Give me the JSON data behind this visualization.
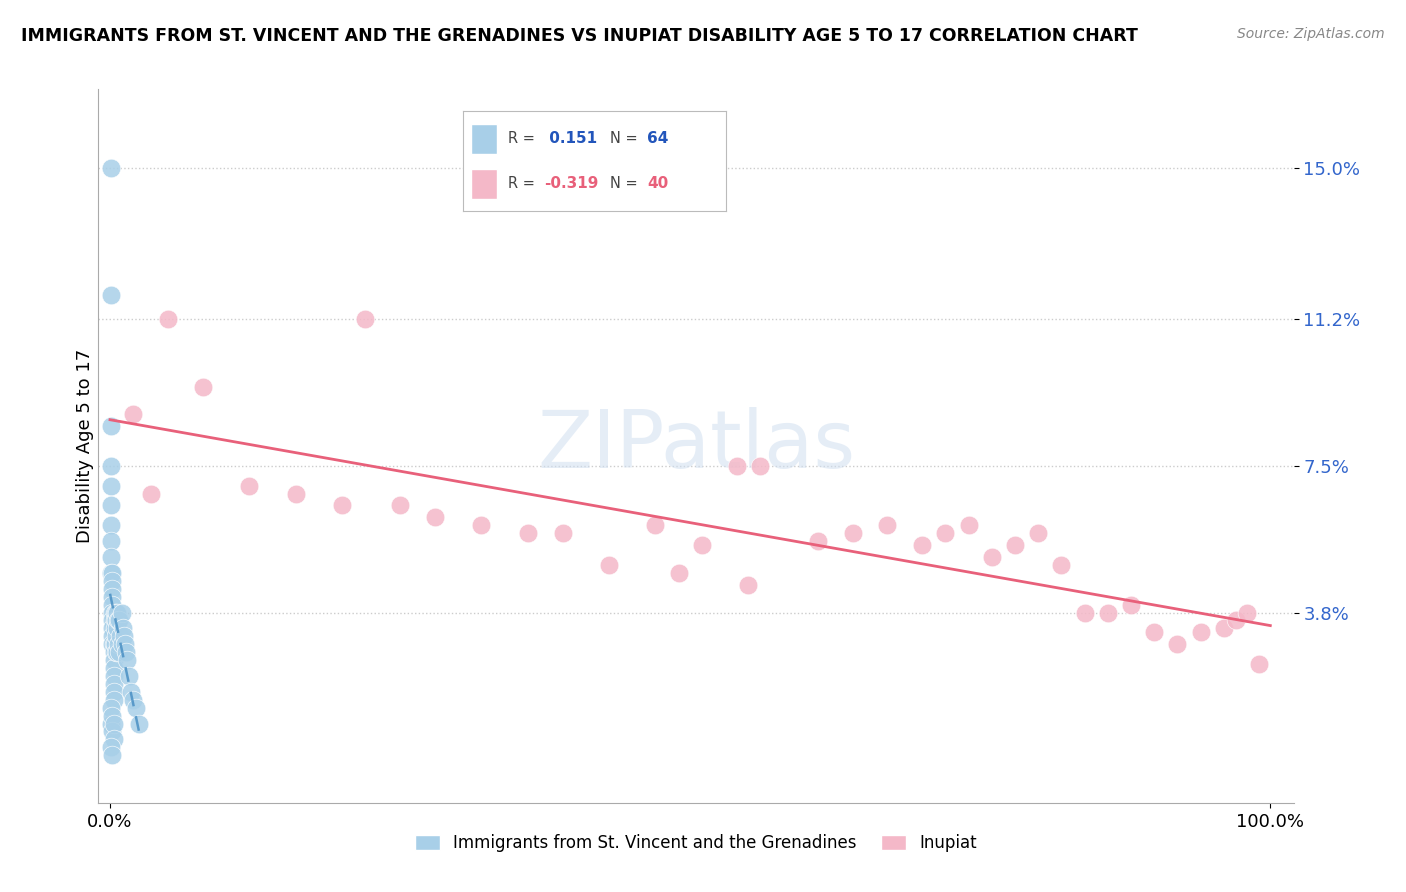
{
  "title": "IMMIGRANTS FROM ST. VINCENT AND THE GRENADINES VS INUPIAT DISABILITY AGE 5 TO 17 CORRELATION CHART",
  "source": "Source: ZipAtlas.com",
  "ylabel": "Disability Age 5 to 17",
  "legend_blue_r": " 0.151",
  "legend_blue_n": "64",
  "legend_pink_r": "-0.319",
  "legend_pink_n": "40",
  "legend_label_blue": "Immigrants from St. Vincent and the Grenadines",
  "legend_label_pink": "Inupiat",
  "blue_color": "#a8cfe8",
  "pink_color": "#f4b8c8",
  "blue_line_color": "#4a90c4",
  "pink_line_color": "#e8607a",
  "ytick_vals": [
    0.038,
    0.075,
    0.112,
    0.15
  ],
  "ytick_labels": [
    "3.8%",
    "7.5%",
    "11.2%",
    "15.0%"
  ],
  "blue_x": [
    0.001,
    0.001,
    0.001,
    0.001,
    0.001,
    0.001,
    0.001,
    0.001,
    0.001,
    0.001,
    0.002,
    0.002,
    0.002,
    0.002,
    0.002,
    0.002,
    0.002,
    0.002,
    0.002,
    0.002,
    0.003,
    0.003,
    0.003,
    0.003,
    0.003,
    0.003,
    0.003,
    0.003,
    0.004,
    0.004,
    0.004,
    0.004,
    0.005,
    0.005,
    0.005,
    0.005,
    0.006,
    0.006,
    0.006,
    0.007,
    0.007,
    0.008,
    0.008,
    0.009,
    0.01,
    0.01,
    0.011,
    0.012,
    0.013,
    0.014,
    0.015,
    0.016,
    0.018,
    0.02,
    0.022,
    0.025,
    0.001,
    0.001,
    0.002,
    0.002,
    0.003,
    0.003,
    0.001,
    0.002
  ],
  "blue_y": [
    0.15,
    0.118,
    0.085,
    0.075,
    0.07,
    0.065,
    0.06,
    0.056,
    0.052,
    0.048,
    0.048,
    0.046,
    0.044,
    0.042,
    0.04,
    0.038,
    0.036,
    0.034,
    0.032,
    0.03,
    0.03,
    0.028,
    0.026,
    0.024,
    0.022,
    0.02,
    0.018,
    0.016,
    0.038,
    0.036,
    0.034,
    0.03,
    0.038,
    0.036,
    0.032,
    0.028,
    0.038,
    0.034,
    0.028,
    0.036,
    0.03,
    0.036,
    0.028,
    0.032,
    0.038,
    0.03,
    0.034,
    0.032,
    0.03,
    0.028,
    0.026,
    0.022,
    0.018,
    0.016,
    0.014,
    0.01,
    0.014,
    0.01,
    0.012,
    0.008,
    0.01,
    0.006,
    0.004,
    0.002
  ],
  "pink_x": [
    0.02,
    0.035,
    0.05,
    0.08,
    0.12,
    0.16,
    0.2,
    0.22,
    0.25,
    0.28,
    0.32,
    0.36,
    0.39,
    0.43,
    0.47,
    0.51,
    0.54,
    0.56,
    0.61,
    0.64,
    0.67,
    0.7,
    0.72,
    0.74,
    0.76,
    0.78,
    0.8,
    0.82,
    0.84,
    0.86,
    0.88,
    0.9,
    0.92,
    0.94,
    0.96,
    0.97,
    0.98,
    0.99,
    0.49,
    0.55
  ],
  "pink_y": [
    0.088,
    0.068,
    0.112,
    0.095,
    0.07,
    0.068,
    0.065,
    0.112,
    0.065,
    0.062,
    0.06,
    0.058,
    0.058,
    0.05,
    0.06,
    0.055,
    0.075,
    0.075,
    0.056,
    0.058,
    0.06,
    0.055,
    0.058,
    0.06,
    0.052,
    0.055,
    0.058,
    0.05,
    0.038,
    0.038,
    0.04,
    0.033,
    0.03,
    0.033,
    0.034,
    0.036,
    0.038,
    0.025,
    0.048,
    0.045
  ],
  "xlim": [
    -0.01,
    1.02
  ],
  "ylim": [
    -0.01,
    0.17
  ]
}
